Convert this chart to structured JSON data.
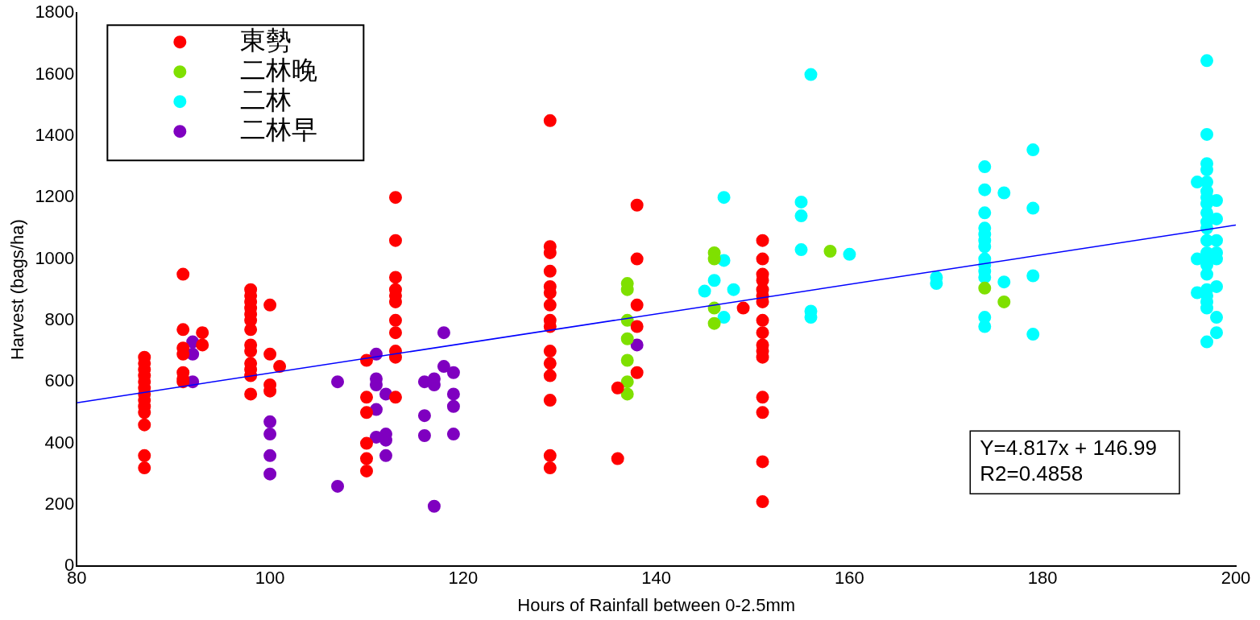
{
  "chart_data": {
    "type": "scatter",
    "xlabel": "Hours of Rainfall between 0-2.5mm",
    "ylabel": "Harvest (bags/ha)",
    "xlim": [
      80,
      200
    ],
    "xticks": [
      80,
      100,
      120,
      140,
      160,
      180,
      200
    ],
    "ylim": [
      0,
      1800
    ],
    "yticks": [
      0,
      200,
      400,
      600,
      800,
      1000,
      1200,
      1400,
      1600,
      1800
    ],
    "grid": false,
    "legend": "top left",
    "marker": "circle",
    "annotations": [
      "Y=4.817x + 146.99",
      "R2=0.4858"
    ],
    "series": [
      {
        "name": "東勢",
        "color": "#ff0000",
        "x": [
          87,
          87,
          87,
          87,
          87,
          87,
          87,
          87,
          87,
          87,
          87,
          87,
          87,
          91,
          91,
          91,
          91,
          91,
          91,
          91,
          93,
          93,
          98,
          98,
          98,
          98,
          98,
          98,
          98,
          98,
          98,
          98,
          98,
          98,
          98,
          100,
          100,
          100,
          100,
          101,
          110,
          110,
          110,
          110,
          110,
          110,
          113,
          113,
          113,
          113,
          113,
          113,
          113,
          113,
          113,
          113,
          113,
          129,
          129,
          129,
          129,
          129,
          129,
          129,
          129,
          129,
          129,
          129,
          129,
          129,
          129,
          129,
          136,
          136,
          138,
          138,
          138,
          138,
          138,
          149,
          151,
          151,
          151,
          151,
          151,
          151,
          151,
          151,
          151,
          151,
          151,
          151,
          151,
          151,
          151,
          151
        ],
        "values": [
          680,
          660,
          640,
          620,
          600,
          580,
          560,
          540,
          520,
          500,
          460,
          360,
          320,
          950,
          770,
          710,
          690,
          630,
          610,
          600,
          760,
          720,
          900,
          880,
          860,
          840,
          820,
          800,
          770,
          720,
          700,
          660,
          640,
          620,
          560,
          850,
          690,
          590,
          570,
          650,
          670,
          550,
          500,
          400,
          350,
          310,
          1200,
          1060,
          940,
          900,
          880,
          860,
          800,
          760,
          700,
          680,
          550,
          1450,
          1040,
          1020,
          960,
          910,
          890,
          850,
          800,
          780,
          700,
          660,
          620,
          540,
          360,
          320,
          580,
          350,
          1175,
          1000,
          850,
          780,
          630,
          840,
          1060,
          1000,
          950,
          930,
          900,
          880,
          860,
          800,
          760,
          720,
          700,
          680,
          550,
          500,
          340,
          210
        ]
      },
      {
        "name": "二林晚",
        "color": "#7fe000",
        "x": [
          137,
          137,
          137,
          137,
          137,
          137,
          137,
          146,
          146,
          146,
          146,
          158,
          174,
          176
        ],
        "values": [
          920,
          900,
          800,
          740,
          670,
          600,
          560,
          1020,
          1000,
          840,
          790,
          1025,
          905,
          860
        ]
      },
      {
        "name": "二林",
        "color": "#00ffff",
        "x": [
          145,
          146,
          147,
          147,
          147,
          148,
          155,
          155,
          155,
          156,
          156,
          156,
          160,
          169,
          169,
          174,
          174,
          174,
          174,
          174,
          174,
          174,
          174,
          174,
          174,
          174,
          174,
          174,
          176,
          176,
          179,
          179,
          179,
          179,
          196,
          196,
          196,
          197,
          197,
          197,
          197,
          197,
          197,
          197,
          197,
          197,
          197,
          197,
          197,
          197,
          197,
          197,
          197,
          197,
          197,
          197,
          197,
          197,
          198,
          198,
          198,
          198,
          198,
          198,
          198,
          198
        ],
        "values": [
          895,
          930,
          1200,
          995,
          810,
          900,
          1185,
          1140,
          1030,
          1600,
          830,
          810,
          1015,
          940,
          920,
          1300,
          1225,
          1150,
          1100,
          1080,
          1060,
          1040,
          1000,
          980,
          960,
          940,
          810,
          780,
          1215,
          925,
          1355,
          1165,
          945,
          755,
          1250,
          1000,
          890,
          1645,
          1405,
          1310,
          1290,
          1250,
          1220,
          1200,
          1180,
          1150,
          1120,
          1100,
          1060,
          1020,
          1000,
          980,
          950,
          900,
          880,
          860,
          840,
          730,
          1190,
          1130,
          1060,
          1020,
          1000,
          910,
          810,
          760
        ]
      },
      {
        "name": "二林早",
        "color": "#7f00c0",
        "x": [
          92,
          92,
          92,
          100,
          100,
          100,
          100,
          107,
          107,
          111,
          111,
          111,
          111,
          111,
          112,
          112,
          112,
          112,
          116,
          116,
          116,
          117,
          117,
          117,
          118,
          118,
          119,
          119,
          119,
          119,
          138
        ],
        "values": [
          730,
          690,
          600,
          470,
          430,
          360,
          300,
          600,
          260,
          690,
          610,
          590,
          510,
          420,
          560,
          430,
          410,
          360,
          600,
          490,
          425,
          610,
          590,
          195,
          760,
          650,
          630,
          560,
          520,
          430,
          720
        ]
      },
      {
        "type": "line",
        "marker": "none",
        "color": "#0000ff",
        "x": [
          80,
          200
        ],
        "values": [
          532,
          1110
        ]
      }
    ]
  }
}
